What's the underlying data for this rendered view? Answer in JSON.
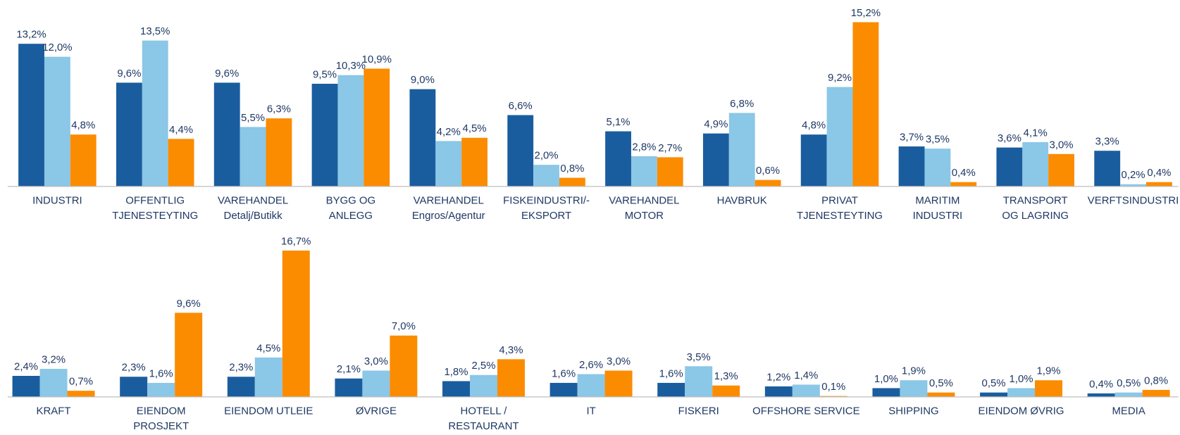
{
  "chart_data": [
    {
      "type": "bar",
      "categories": [
        "INDUSTRI",
        "OFFENTLIG\nTJENESTEYTING",
        "VAREHANDEL\nDetalj/Butikk",
        "BYGG OG\nANLEGG",
        "VAREHANDEL\nEngros/Agentur",
        "FISKEINDUSTRI/-\nEKSPORT",
        "VAREHANDEL\nMOTOR",
        "HAVBRUK",
        "PRIVAT\nTJENESTEYTING",
        "MARITIM\nINDUSTRI",
        "TRANSPORT\nOG LAGRING",
        "VERFTSINDUSTRI"
      ],
      "series": [
        {
          "color": "#1a5d9f",
          "values": [
            13.2,
            9.6,
            9.6,
            9.5,
            9.0,
            6.6,
            5.1,
            4.9,
            4.8,
            3.7,
            3.6,
            3.3
          ],
          "value_labels": [
            "13,2%",
            "9,6%",
            "9,6%",
            "9,5%",
            "9,0%",
            "6,6%",
            "5,1%",
            "4,9%",
            "4,8%",
            "3,7%",
            "3,6%",
            "3,3%"
          ]
        },
        {
          "color": "#8bc7e6",
          "values": [
            12.0,
            13.5,
            5.5,
            10.3,
            4.2,
            2.0,
            2.8,
            6.8,
            9.2,
            3.5,
            4.1,
            0.2
          ],
          "value_labels": [
            "12,0%",
            "13,5%",
            "5,5%",
            "10,3%",
            "4,2%",
            "2,0%",
            "2,8%",
            "6,8%",
            "9,2%",
            "3,5%",
            "4,1%",
            "0,2%"
          ]
        },
        {
          "color": "#fb8c00",
          "values": [
            4.8,
            4.4,
            6.3,
            10.9,
            4.5,
            0.8,
            2.7,
            0.6,
            15.2,
            0.4,
            3.0,
            0.4
          ],
          "value_labels": [
            "4,8%",
            "4,4%",
            "6,3%",
            "10,9%",
            "4,5%",
            "0,8%",
            "2,7%",
            "0,6%",
            "15,2%",
            "0,4%",
            "3,0%",
            "0,4%"
          ]
        }
      ],
      "ylim": [
        0,
        16
      ]
    },
    {
      "type": "bar",
      "categories": [
        "KRAFT",
        "EIENDOM\nPROSJEKT",
        "EIENDOM UTLEIE",
        "ØVRIGE",
        "HOTELL /\nRESTAURANT",
        "IT",
        "FISKERI",
        "OFFSHORE SERVICE",
        "SHIPPING",
        "EIENDOM ØVRIG",
        "MEDIA"
      ],
      "series": [
        {
          "color": "#1a5d9f",
          "values": [
            2.4,
            2.3,
            2.3,
            2.1,
            1.8,
            1.6,
            1.6,
            1.2,
            1.0,
            0.5,
            0.4
          ],
          "value_labels": [
            "2,4%",
            "2,3%",
            "2,3%",
            "2,1%",
            "1,8%",
            "1,6%",
            "1,6%",
            "1,2%",
            "1,0%",
            "0,5%",
            "0,4%"
          ]
        },
        {
          "color": "#8bc7e6",
          "values": [
            3.2,
            1.6,
            4.5,
            3.0,
            2.5,
            2.6,
            3.5,
            1.4,
            1.9,
            1.0,
            0.5
          ],
          "value_labels": [
            "3,2%",
            "1,6%",
            "4,5%",
            "3,0%",
            "2,5%",
            "2,6%",
            "3,5%",
            "1,4%",
            "1,9%",
            "1,0%",
            "0,5%"
          ]
        },
        {
          "color": "#fb8c00",
          "values": [
            0.7,
            9.6,
            16.7,
            7.0,
            4.3,
            3.0,
            1.3,
            0.1,
            0.5,
            1.9,
            0.8
          ],
          "value_labels": [
            "0,7%",
            "9,6%",
            "16,7%",
            "7,0%",
            "4,3%",
            "3,0%",
            "1,3%",
            "0,1%",
            "0,5%",
            "1,9%",
            "0,8%"
          ]
        }
      ],
      "ylim": [
        0,
        17.5
      ]
    }
  ]
}
